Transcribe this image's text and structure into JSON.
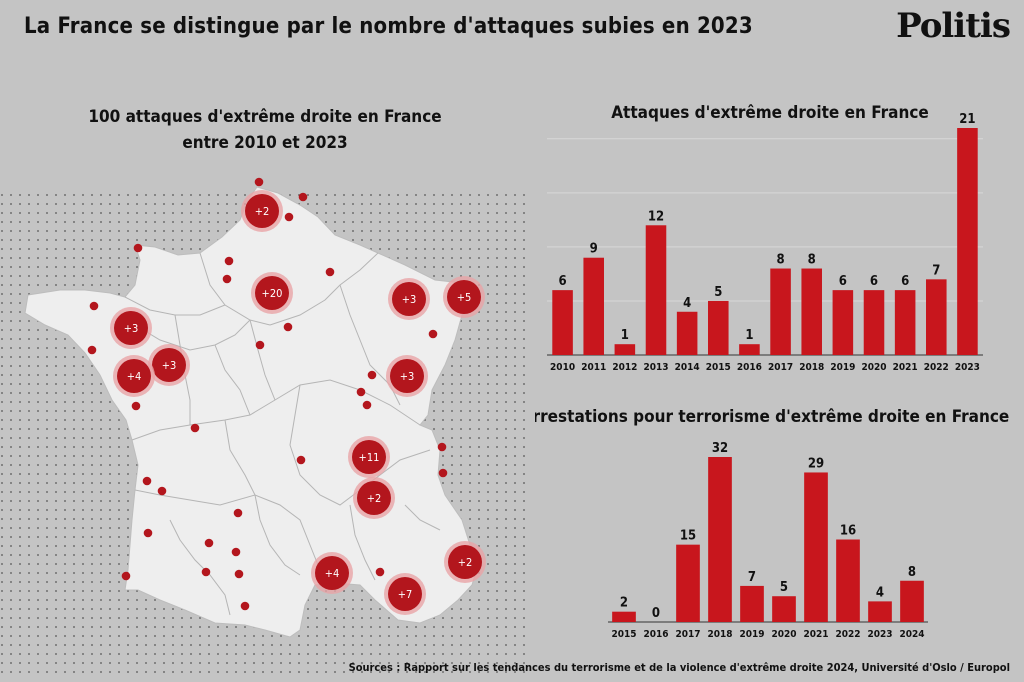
{
  "header": {
    "title": "La France se distingue par le nombre d'attaques subies en 2023",
    "logo": "Politis"
  },
  "map": {
    "title_line1": "100 attaques d'extrême droite en France",
    "title_line2": "entre 2010 et 2023",
    "clusters": [
      "+2",
      "+20",
      "+3",
      "+5",
      "+3",
      "+3",
      "+4",
      "+3",
      "+11",
      "+2",
      "+4",
      "+7",
      "+2"
    ]
  },
  "colors": {
    "bar": "#c8161d",
    "background": "#c4c4c4",
    "map_fill": "#eeeeee",
    "map_border": "#a8a8a8",
    "dot": "#b3161d"
  },
  "chart_data": [
    {
      "type": "bar",
      "title": "Attaques d'extrême droite en France",
      "categories": [
        "2010",
        "2011",
        "2012",
        "2013",
        "2014",
        "2015",
        "2016",
        "2017",
        "2018",
        "2019",
        "2020",
        "2021",
        "2022",
        "2023"
      ],
      "values": [
        6,
        9,
        1,
        12,
        4,
        5,
        1,
        8,
        8,
        6,
        6,
        6,
        7,
        21
      ],
      "ylim": [
        0,
        21
      ],
      "grid": true
    },
    {
      "type": "bar",
      "title": "Arrestations pour terrorisme d'extrême droite en France",
      "categories": [
        "2015",
        "2016",
        "2017",
        "2018",
        "2019",
        "2020",
        "2021",
        "2022",
        "2023",
        "2024"
      ],
      "values": [
        2,
        0,
        15,
        32,
        7,
        5,
        29,
        16,
        4,
        8
      ],
      "ylim": [
        0,
        32
      ],
      "grid": false
    }
  ],
  "footer": {
    "source": "Sources : Rapport sur les tendances du terrorisme et de la violence d'extrême droite 2024, Université d'Oslo / Europol"
  }
}
